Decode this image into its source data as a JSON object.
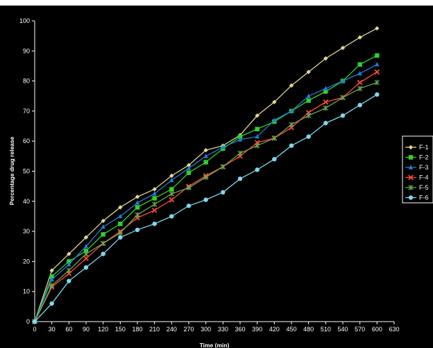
{
  "chart_data": {
    "type": "line",
    "title": "",
    "xlabel": "Time (min)",
    "ylabel": "Percentage drug release",
    "x": [
      0,
      30,
      60,
      90,
      120,
      150,
      180,
      210,
      240,
      270,
      300,
      330,
      360,
      390,
      420,
      450,
      480,
      510,
      540,
      570,
      600
    ],
    "x_ticks": [
      "0",
      "30",
      "60",
      "90",
      "120",
      "150",
      "180",
      "210",
      "240",
      "270",
      "300",
      "330",
      "360",
      "390",
      "420",
      "450",
      "480",
      "510",
      "540",
      "570",
      "600",
      "630"
    ],
    "y_ticks": [
      "0",
      "10",
      "20",
      "30",
      "40",
      "50",
      "60",
      "70",
      "80",
      "90",
      "100"
    ],
    "xlim": [
      0,
      630
    ],
    "ylim": [
      0,
      100
    ],
    "grid": false,
    "legend_position": "right",
    "series": [
      {
        "name": "F-1",
        "color": "#e6d690",
        "marker": "diamond",
        "values": [
          0,
          17,
          22.5,
          28,
          33.5,
          38,
          41.5,
          44,
          48.5,
          52,
          57,
          58.5,
          62,
          68.5,
          73,
          78.5,
          83,
          87.5,
          91,
          94.5,
          97.5
        ]
      },
      {
        "name": "F-2",
        "color": "#2ed12e",
        "marker": "square",
        "values": [
          0,
          15,
          20,
          23.5,
          29,
          32.5,
          38,
          41,
          44,
          49.5,
          53,
          57.5,
          61.5,
          64,
          66.5,
          70,
          73.5,
          76.5,
          80,
          85.5,
          88.5
        ]
      },
      {
        "name": "F-3",
        "color": "#1f7fd6",
        "marker": "triangle",
        "values": [
          0,
          14,
          19,
          25,
          31.5,
          35,
          39.5,
          42.5,
          47,
          51,
          55,
          58,
          60.5,
          61.5,
          67,
          70,
          75,
          77.5,
          80,
          82.5,
          85.5
        ]
      },
      {
        "name": "F-4",
        "color": "#ff4a3a",
        "marker": "x",
        "values": [
          0,
          11.5,
          16,
          21,
          26,
          30,
          34.5,
          37,
          40.5,
          45,
          48.5,
          51.5,
          55,
          59.5,
          61,
          64.5,
          69.5,
          73,
          74.5,
          79.5,
          83
        ]
      },
      {
        "name": "F-5",
        "color": "#6aa84f",
        "marker": "star",
        "values": [
          0,
          12,
          17,
          22.5,
          26,
          29.5,
          35.5,
          39,
          42.5,
          44.5,
          48,
          51.5,
          56,
          58.5,
          61,
          65.5,
          68.5,
          71,
          74.5,
          77.5,
          79.5
        ]
      },
      {
        "name": "F-6",
        "color": "#7fd8ec",
        "marker": "circle",
        "values": [
          0,
          6,
          13.5,
          18,
          22.5,
          28,
          30.5,
          32.5,
          35,
          38.5,
          40.5,
          43,
          47.5,
          50.5,
          54,
          58.5,
          61.5,
          66,
          68.5,
          72,
          75.5
        ]
      }
    ]
  }
}
